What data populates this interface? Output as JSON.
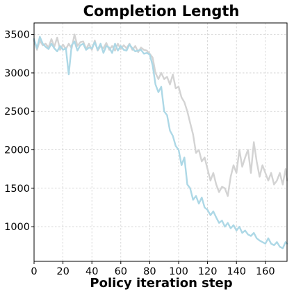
{
  "chart_data": {
    "type": "line",
    "title": "Completion Length",
    "xlabel": "Policy iteration step",
    "ylabel": "",
    "xlim": [
      0,
      175
    ],
    "ylim": [
      550,
      3650
    ],
    "xticks": [
      0,
      20,
      40,
      60,
      80,
      100,
      120,
      140,
      160
    ],
    "yticks": [
      1000,
      1500,
      2000,
      2500,
      3000,
      3500
    ],
    "grid": true,
    "legend": "none",
    "series": [
      {
        "color": "#d3d3d3",
        "x": [
          0,
          2,
          4,
          6,
          8,
          10,
          12,
          14,
          16,
          18,
          20,
          22,
          24,
          26,
          28,
          30,
          32,
          34,
          36,
          38,
          40,
          42,
          44,
          46,
          48,
          50,
          52,
          54,
          56,
          58,
          60,
          62,
          64,
          66,
          68,
          70,
          72,
          74,
          76,
          78,
          80,
          82,
          84,
          86,
          88,
          90,
          92,
          94,
          96,
          98,
          100,
          102,
          104,
          106,
          108,
          110,
          112,
          114,
          116,
          118,
          120,
          122,
          124,
          126,
          128,
          130,
          132,
          134,
          136,
          138,
          140,
          142,
          144,
          146,
          148,
          150,
          152,
          154,
          156,
          158,
          160,
          162,
          164,
          166,
          168,
          170,
          172,
          174,
          175
        ],
        "y": [
          3420,
          3300,
          3420,
          3360,
          3380,
          3330,
          3440,
          3340,
          3460,
          3300,
          3370,
          3310,
          3380,
          3320,
          3500,
          3350,
          3400,
          3410,
          3310,
          3380,
          3300,
          3420,
          3290,
          3350,
          3320,
          3390,
          3300,
          3350,
          3290,
          3380,
          3310,
          3360,
          3320,
          3380,
          3300,
          3350,
          3270,
          3330,
          3300,
          3290,
          3250,
          3200,
          3000,
          2920,
          3000,
          2920,
          2950,
          2850,
          2980,
          2800,
          2820,
          2680,
          2620,
          2500,
          2350,
          2200,
          1960,
          2000,
          1850,
          1900,
          1750,
          1600,
          1700,
          1550,
          1450,
          1520,
          1500,
          1400,
          1650,
          1800,
          1700,
          2000,
          1780,
          1900,
          2000,
          1700,
          2100,
          1850,
          1650,
          1800,
          1700,
          1600,
          1700,
          1550,
          1600,
          1700,
          1550,
          1750,
          1600
        ]
      },
      {
        "color": "#add8e6",
        "x": [
          0,
          2,
          4,
          6,
          8,
          10,
          12,
          14,
          16,
          18,
          20,
          22,
          24,
          26,
          28,
          30,
          32,
          34,
          36,
          38,
          40,
          42,
          44,
          46,
          48,
          50,
          52,
          54,
          56,
          58,
          60,
          62,
          64,
          66,
          68,
          70,
          72,
          74,
          76,
          78,
          80,
          82,
          84,
          86,
          88,
          90,
          92,
          94,
          96,
          98,
          100,
          102,
          104,
          106,
          108,
          110,
          112,
          114,
          116,
          118,
          120,
          122,
          124,
          126,
          128,
          130,
          132,
          134,
          136,
          138,
          140,
          142,
          144,
          146,
          148,
          150,
          152,
          154,
          156,
          158,
          160,
          162,
          164,
          166,
          168,
          170,
          172,
          174,
          175
        ],
        "y": [
          3440,
          3320,
          3470,
          3380,
          3340,
          3310,
          3380,
          3320,
          3280,
          3350,
          3300,
          3320,
          2980,
          3360,
          3410,
          3290,
          3360,
          3380,
          3300,
          3330,
          3320,
          3400,
          3300,
          3380,
          3260,
          3350,
          3330,
          3260,
          3380,
          3290,
          3350,
          3300,
          3290,
          3370,
          3320,
          3280,
          3290,
          3300,
          3250,
          3260,
          3240,
          3100,
          2850,
          2750,
          2820,
          2500,
          2450,
          2250,
          2180,
          2050,
          2000,
          1800,
          1900,
          1550,
          1500,
          1350,
          1400,
          1300,
          1380,
          1250,
          1220,
          1150,
          1200,
          1120,
          1050,
          1080,
          1000,
          1050,
          980,
          1020,
          950,
          1000,
          920,
          950,
          900,
          880,
          920,
          850,
          820,
          800,
          780,
          850,
          780,
          760,
          800,
          740,
          720,
          800,
          780
        ]
      }
    ]
  }
}
